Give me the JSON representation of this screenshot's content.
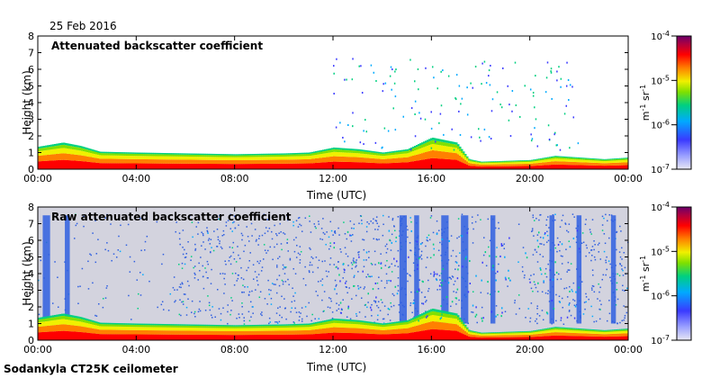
{
  "header": {
    "date": "25 Feb 2016"
  },
  "footer": {
    "instrument": "Sodankyla CT25K ceilometer"
  },
  "chart_data": [
    {
      "type": "heatmap",
      "title": "Attenuated backscatter coefficient",
      "xlabel": "Time (UTC)",
      "ylabel": "Height (km)",
      "xlim": [
        0,
        24
      ],
      "ylim": [
        0,
        8
      ],
      "x_ticks": [
        0,
        4,
        8,
        12,
        16,
        20,
        24
      ],
      "x_tick_labels": [
        "00:00",
        "04:00",
        "08:00",
        "12:00",
        "16:00",
        "20:00",
        "00:00"
      ],
      "y_ticks": [
        0,
        1,
        2,
        3,
        4,
        5,
        6,
        7,
        8
      ],
      "y_tick_labels": [
        "0",
        "1",
        "2",
        "3",
        "4",
        "5",
        "6",
        "7",
        "8"
      ],
      "colorbar": {
        "label_base": "m",
        "label_exp1": "-1",
        "label_mid": " sr",
        "label_exp2": "-1",
        "scale": "log",
        "range": [
          1e-07,
          0.0001
        ],
        "ticks": [
          {
            "base": "10",
            "exp": "-4",
            "value": 0.0001
          },
          {
            "base": "10",
            "exp": "-5",
            "value": 1e-05
          },
          {
            "base": "10",
            "exp": "-6",
            "value": 1e-06
          },
          {
            "base": "10",
            "exp": "-7",
            "value": 1e-07
          }
        ]
      },
      "boundary_layer_top_km": [
        [
          0,
          1.35
        ],
        [
          1,
          1.6
        ],
        [
          1.7,
          1.4
        ],
        [
          2.5,
          1.05
        ],
        [
          4,
          1.0
        ],
        [
          6,
          0.95
        ],
        [
          8,
          0.9
        ],
        [
          10,
          0.95
        ],
        [
          11,
          1.0
        ],
        [
          12,
          1.3
        ],
        [
          13,
          1.2
        ],
        [
          14,
          1.0
        ],
        [
          15,
          1.2
        ],
        [
          16,
          1.9
        ],
        [
          17,
          1.6
        ],
        [
          17.5,
          0.6
        ],
        [
          18,
          0.45
        ],
        [
          19,
          0.5
        ],
        [
          20,
          0.55
        ],
        [
          21,
          0.8
        ],
        [
          22,
          0.7
        ],
        [
          23,
          0.6
        ],
        [
          24,
          0.7
        ]
      ]
    },
    {
      "type": "heatmap",
      "title": "Raw attenuated backscatter coefficient",
      "xlabel": "Time (UTC)",
      "ylabel": "Height (km)",
      "xlim": [
        0,
        24
      ],
      "ylim": [
        0,
        8
      ],
      "x_ticks": [
        0,
        4,
        8,
        12,
        16,
        20,
        24
      ],
      "x_tick_labels": [
        "00:00",
        "04:00",
        "08:00",
        "12:00",
        "16:00",
        "20:00",
        "00:00"
      ],
      "y_ticks": [
        0,
        1,
        2,
        3,
        4,
        5,
        6,
        7,
        8
      ],
      "y_tick_labels": [
        "0",
        "1",
        "2",
        "3",
        "4",
        "5",
        "6",
        "7",
        "8"
      ],
      "colorbar": {
        "label_base": "m",
        "label_exp1": "-1",
        "label_mid": " sr",
        "label_exp2": "-1",
        "scale": "log",
        "range": [
          1e-07,
          0.0001
        ],
        "ticks": [
          {
            "base": "10",
            "exp": "-4",
            "value": 0.0001
          },
          {
            "base": "10",
            "exp": "-5",
            "value": 1e-05
          },
          {
            "base": "10",
            "exp": "-6",
            "value": 1e-06
          },
          {
            "base": "10",
            "exp": "-7",
            "value": 1e-07
          }
        ]
      }
    }
  ],
  "colors": {
    "background": "#d3d3de",
    "noise": "#2f5fe0",
    "scale": [
      "#e8e8f4",
      "#3a3aff",
      "#00aaff",
      "#00d080",
      "#80e000",
      "#f0f000",
      "#ff8000",
      "#ff0000",
      "#a00060",
      "#700070"
    ]
  }
}
